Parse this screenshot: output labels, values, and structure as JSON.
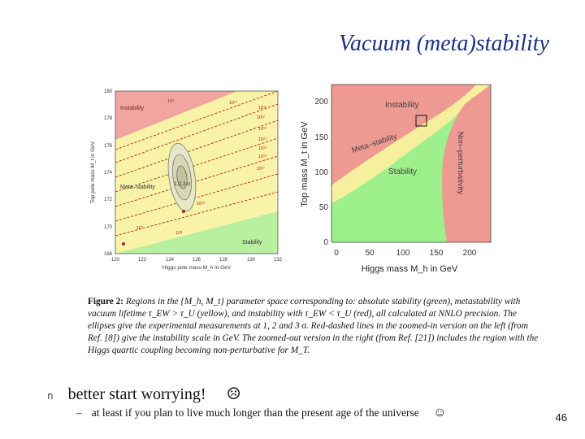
{
  "slide": {
    "title": "Vacuum (meta)stability",
    "page_number": "46"
  },
  "figure_left": {
    "xlabel": "Higgs pole mass M_h in GeV",
    "ylabel": "Top pole mass M_t in GeV",
    "xticks": [
      "120",
      "122",
      "124",
      "126",
      "128",
      "130",
      "132"
    ],
    "yticks": [
      "168",
      "170",
      "172",
      "174",
      "176",
      "178",
      "180"
    ],
    "regions": [
      "Instability",
      "Meta–stability",
      "Stability"
    ],
    "ellipse_label": "1,2,3 σ",
    "scale_labels": [
      "10⁹",
      "10¹⁰",
      "10¹²",
      "10¹¹",
      "10¹³",
      "10¹⁴",
      "10¹⁵",
      "10¹⁶",
      "10¹⁷",
      "10¹⁸",
      "10¹⁹",
      "10⁷",
      "10⁸"
    ],
    "colors": {
      "red": "#f2a5a0",
      "yellow": "#f8f3a6",
      "green": "#b8f0a0",
      "line": "#b22222"
    }
  },
  "figure_right": {
    "xlabel": "Higgs mass M_h in GeV",
    "ylabel": "Top mass M_t in GeV",
    "xticks": [
      "0",
      "50",
      "100",
      "150",
      "200"
    ],
    "yticks": [
      "0",
      "50",
      "100",
      "150",
      "200"
    ],
    "regions": [
      "Instability",
      "Meta–stability",
      "Stability",
      "Non–perturbativity"
    ],
    "colors": {
      "red": "#ee9992",
      "yellow": "#f6ef9e",
      "green": "#9ef08c"
    }
  },
  "caption": {
    "label": "Figure 2:",
    "text": "Regions in the {M_h, M_t} parameter space corresponding to: absolute stability (green), metastability with vacuum lifetime τ_EW > τ_U (yellow), and instability with τ_EW < τ_U (red), all calculated at NNLO precision. The ellipses give the experimental measurements at 1, 2 and 3 σ. Red-dashed lines in the zoomed-in version on the left (from Ref. [8]) give the instability scale in GeV. The zoomed-out version in the right (from Ref. [21]) includes the region with the Higgs quartic coupling becoming non-perturbative for M_T."
  },
  "bullets": [
    {
      "text": "better start worrying!",
      "emoji": "☹",
      "sub": {
        "text": "at least if you plan to live much longer than the present age of the universe",
        "emoji": "☺"
      }
    }
  ]
}
